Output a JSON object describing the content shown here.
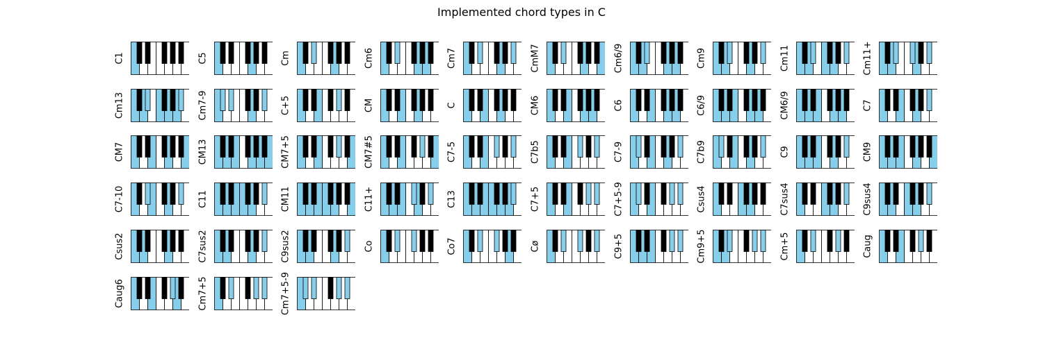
{
  "title": "Implemented chord types in C",
  "colors": {
    "highlight": "#87ceeb",
    "white_key": "#ffffff",
    "black_key": "#000000",
    "outline": "#000000"
  },
  "note_order": [
    "C",
    "C#",
    "D",
    "D#",
    "E",
    "F",
    "F#",
    "G",
    "G#",
    "A",
    "A#",
    "B",
    "C2",
    "C#2",
    "D2",
    "D#2",
    "E2",
    "F2",
    "F#2",
    "G2",
    "G#2",
    "A2",
    "A#2",
    "B2"
  ],
  "chords": [
    {
      "name": "C1",
      "keys": [
        0
      ]
    },
    {
      "name": "C5",
      "keys": [
        0,
        7
      ]
    },
    {
      "name": "Cm",
      "keys": [
        0,
        3,
        7
      ]
    },
    {
      "name": "Cm6",
      "keys": [
        0,
        3,
        7,
        9
      ]
    },
    {
      "name": "Cm7",
      "keys": [
        0,
        3,
        7,
        10
      ]
    },
    {
      "name": "CmM7",
      "keys": [
        0,
        3,
        7,
        11
      ]
    },
    {
      "name": "Cm6/9",
      "keys": [
        0,
        3,
        7,
        9,
        14
      ]
    },
    {
      "name": "Cm9",
      "keys": [
        0,
        3,
        7,
        10,
        14
      ]
    },
    {
      "name": "Cm11",
      "keys": [
        0,
        3,
        7,
        10,
        14,
        17
      ]
    },
    {
      "name": "Cm11+",
      "keys": [
        0,
        3,
        7,
        10,
        14,
        18
      ]
    },
    {
      "name": "Cm13",
      "keys": [
        0,
        3,
        7,
        10,
        14,
        17,
        21
      ]
    },
    {
      "name": "Cm7-9",
      "keys": [
        0,
        3,
        7,
        10,
        13
      ]
    },
    {
      "name": "C+5",
      "keys": [
        0,
        4,
        8
      ]
    },
    {
      "name": "CM",
      "keys": [
        0,
        4,
        7
      ]
    },
    {
      "name": "C",
      "keys": [
        0,
        4,
        7
      ]
    },
    {
      "name": "CM6",
      "keys": [
        0,
        4,
        7,
        9
      ]
    },
    {
      "name": "C6",
      "keys": [
        0,
        4,
        7,
        9
      ]
    },
    {
      "name": "C6/9",
      "keys": [
        0,
        4,
        7,
        9,
        14
      ]
    },
    {
      "name": "CM6/9",
      "keys": [
        0,
        4,
        7,
        9,
        14
      ]
    },
    {
      "name": "C7",
      "keys": [
        0,
        4,
        7,
        10
      ]
    },
    {
      "name": "CM7",
      "keys": [
        0,
        4,
        7,
        11
      ]
    },
    {
      "name": "CM13",
      "keys": [
        0,
        4,
        7,
        11,
        14,
        21
      ]
    },
    {
      "name": "CM7+5",
      "keys": [
        0,
        4,
        8,
        11
      ]
    },
    {
      "name": "CM7#5",
      "keys": [
        0,
        4,
        8,
        11
      ]
    },
    {
      "name": "C7-5",
      "keys": [
        0,
        4,
        6,
        10
      ]
    },
    {
      "name": "C7b5",
      "keys": [
        0,
        4,
        6,
        10
      ]
    },
    {
      "name": "C7-9",
      "keys": [
        0,
        4,
        7,
        10,
        13
      ]
    },
    {
      "name": "C7b9",
      "keys": [
        0,
        4,
        7,
        10,
        13
      ]
    },
    {
      "name": "C9",
      "keys": [
        0,
        4,
        7,
        10,
        14
      ]
    },
    {
      "name": "CM9",
      "keys": [
        0,
        4,
        7,
        11,
        14
      ]
    },
    {
      "name": "C7-10",
      "keys": [
        0,
        4,
        7,
        10,
        15
      ]
    },
    {
      "name": "C11",
      "keys": [
        0,
        4,
        7,
        10,
        14,
        17
      ]
    },
    {
      "name": "CM11",
      "keys": [
        0,
        4,
        7,
        11,
        14,
        17
      ]
    },
    {
      "name": "C11+",
      "keys": [
        0,
        4,
        7,
        10,
        14,
        18
      ]
    },
    {
      "name": "C13",
      "keys": [
        0,
        4,
        7,
        10,
        14,
        17,
        21
      ]
    },
    {
      "name": "C7+5",
      "keys": [
        0,
        4,
        8,
        10
      ]
    },
    {
      "name": "C7+5-9",
      "keys": [
        0,
        4,
        8,
        10,
        13
      ]
    },
    {
      "name": "Csus4",
      "keys": [
        0,
        5,
        7
      ]
    },
    {
      "name": "C7sus4",
      "keys": [
        0,
        5,
        7,
        10
      ]
    },
    {
      "name": "C9sus4",
      "keys": [
        0,
        5,
        7,
        10,
        14
      ]
    },
    {
      "name": "Csus2",
      "keys": [
        0,
        2,
        7
      ]
    },
    {
      "name": "C7sus2",
      "keys": [
        0,
        2,
        7,
        10
      ]
    },
    {
      "name": "C9sus2",
      "keys": [
        0,
        2,
        7,
        10,
        14
      ]
    },
    {
      "name": "Co",
      "keys": [
        0,
        3,
        6
      ]
    },
    {
      "name": "Co7",
      "keys": [
        0,
        3,
        6,
        9
      ]
    },
    {
      "name": "Cø",
      "keys": [
        0,
        3,
        6,
        10
      ]
    },
    {
      "name": "C9+5",
      "keys": [
        0,
        4,
        8,
        10,
        14
      ]
    },
    {
      "name": "Cm9+5",
      "keys": [
        0,
        3,
        8,
        10,
        14
      ]
    },
    {
      "name": "Cm+5",
      "keys": [
        0,
        3,
        8
      ]
    },
    {
      "name": "Caug",
      "keys": [
        0,
        4,
        8
      ]
    },
    {
      "name": "Caug6",
      "keys": [
        0,
        4,
        8,
        9
      ]
    },
    {
      "name": "Cm7+5",
      "keys": [
        0,
        3,
        8,
        10
      ]
    },
    {
      "name": "Cm7+5-9",
      "keys": [
        0,
        3,
        8,
        10,
        13
      ]
    }
  ]
}
